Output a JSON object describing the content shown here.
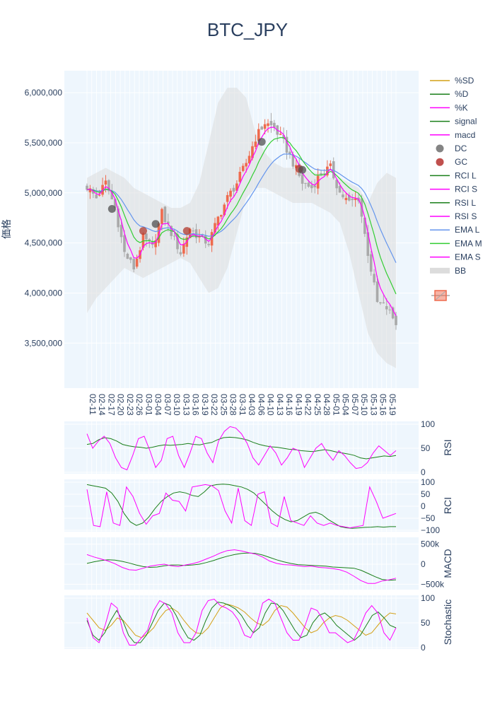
{
  "chart_data": [
    {
      "type": "candlestick",
      "title": "BTC_JPY",
      "ylabel": "価格",
      "ylim": [
        3050000,
        6220000
      ],
      "y_ticks": [
        3500000,
        4000000,
        4500000,
        5000000,
        5500000,
        6000000
      ],
      "y_tick_labels": [
        "3,500,000",
        "4,000,000",
        "4,500,000",
        "5,000,000",
        "5,500,000",
        "6,000,000"
      ],
      "x_tick_labels": [
        "02-11",
        "02-14",
        "02-17",
        "02-20",
        "02-23",
        "02-26",
        "03-01",
        "03-04",
        "03-07",
        "03-10",
        "03-13",
        "03-16",
        "03-19",
        "03-22",
        "03-25",
        "03-28",
        "03-31",
        "04-03",
        "04-06",
        "04-10",
        "04-13",
        "04-16",
        "04-19",
        "04-22",
        "04-25",
        "04-28",
        "05-01",
        "05-04",
        "05-07",
        "05-10",
        "05-13",
        "05-16",
        "05-19"
      ],
      "close_keypoints": [
        5060000,
        4950000,
        5100000,
        4850000,
        4400000,
        4250000,
        4550000,
        4450000,
        4800000,
        4600000,
        4400000,
        4650000,
        4550000,
        4500000,
        4750000,
        4950000,
        5100000,
        5300000,
        5550000,
        5700000,
        5650000,
        5500000,
        5300000,
        5100000,
        5050000,
        5200000,
        5250000,
        5000000,
        4900000,
        4950000,
        4400000,
        3900000,
        3850000,
        3700000
      ],
      "bb_upper_keypoints": [
        5150000,
        5200000,
        5250000,
        5200000,
        5150000,
        5050000,
        5000000,
        4950000,
        4900000,
        4850000,
        4850000,
        4900000,
        5100000,
        5500000,
        5900000,
        6050000,
        6050000,
        5950000,
        5600000,
        5400000,
        5300000,
        5250000,
        5250000,
        5250000,
        5200000,
        5200000,
        5150000,
        5150000,
        5100000,
        5050000,
        4900000,
        5100000,
        5200000,
        5150000
      ],
      "bb_lower_keypoints": [
        3800000,
        3950000,
        4050000,
        4150000,
        4250000,
        4200000,
        4150000,
        4200000,
        4250000,
        4300000,
        4350000,
        4300000,
        4150000,
        4000000,
        4050000,
        4250000,
        4600000,
        4950000,
        5050000,
        5050000,
        5000000,
        4950000,
        4900000,
        4900000,
        4900000,
        4850000,
        4800000,
        4700000,
        4400000,
        4000000,
        3600000,
        3400000,
        3300000,
        3250000
      ],
      "signals": [
        {
          "type": "DC",
          "date": "02-19",
          "value": 4840000
        },
        {
          "type": "GC",
          "date": "03-01",
          "value": 4620000
        },
        {
          "type": "DC",
          "date": "03-05",
          "value": 4690000
        },
        {
          "type": "GC",
          "date": "03-15",
          "value": 4620000
        },
        {
          "type": "DC",
          "date": "04-08",
          "value": 5510000
        },
        {
          "type": "GC",
          "date": "04-21",
          "value": 5240000
        },
        {
          "type": "DC",
          "date": "04-22",
          "value": 5230000
        }
      ],
      "legend": [
        {
          "label": "%SD",
          "color": "#d4a017",
          "kind": "line"
        },
        {
          "label": "%D",
          "color": "#1a7f1a",
          "kind": "line"
        },
        {
          "label": "%K",
          "color": "#ff00ff",
          "kind": "line"
        },
        {
          "label": "signal",
          "color": "#1a7f1a",
          "kind": "line"
        },
        {
          "label": "macd",
          "color": "#ff00ff",
          "kind": "line"
        },
        {
          "label": "DC",
          "color": "#6e6e6e",
          "kind": "marker"
        },
        {
          "label": "GC",
          "color": "#c0504d",
          "kind": "marker"
        },
        {
          "label": "RCI L",
          "color": "#1a7f1a",
          "kind": "line"
        },
        {
          "label": "RCI S",
          "color": "#ff00ff",
          "kind": "line"
        },
        {
          "label": "RSI L",
          "color": "#1a7f1a",
          "kind": "line"
        },
        {
          "label": "RSI S",
          "color": "#ff00ff",
          "kind": "line"
        },
        {
          "label": "EMA L",
          "color": "#6495ed",
          "kind": "line"
        },
        {
          "label": "EMA M",
          "color": "#32cd32",
          "kind": "line"
        },
        {
          "label": "EMA S",
          "color": "#ff00ff",
          "kind": "line"
        },
        {
          "label": "BB",
          "color": "#dcdcdc",
          "kind": "band"
        }
      ],
      "colors": {
        "up": "#ef6a4d",
        "down": "#a9a9a9",
        "plot_bg": "#eef6fd"
      }
    },
    {
      "type": "line",
      "ylabel": "RSI",
      "ylim": [
        0,
        100
      ],
      "y_ticks": [
        0,
        50,
        100
      ],
      "y_tick_labels": [
        "0",
        "50",
        "100"
      ],
      "series": [
        {
          "name": "RSI L",
          "color": "#1a7f1a",
          "values": [
            58,
            60,
            68,
            72,
            70,
            65,
            58,
            55,
            53,
            52,
            50,
            52,
            55,
            57,
            56,
            57,
            58,
            60,
            58,
            57,
            60,
            62,
            68,
            72,
            73,
            72,
            70,
            67,
            62,
            58,
            55,
            53,
            52,
            50,
            48,
            47,
            45,
            44,
            43,
            45,
            47,
            45,
            42,
            40,
            38,
            35,
            30,
            28,
            30,
            32,
            34,
            33,
            35
          ]
        },
        {
          "name": "RSI S",
          "color": "#ff00ff",
          "values": [
            80,
            50,
            65,
            75,
            60,
            30,
            10,
            5,
            35,
            70,
            75,
            45,
            10,
            25,
            70,
            75,
            35,
            10,
            40,
            75,
            70,
            40,
            20,
            65,
            85,
            95,
            92,
            80,
            60,
            30,
            15,
            35,
            55,
            40,
            15,
            30,
            50,
            45,
            10,
            30,
            50,
            60,
            40,
            25,
            45,
            35,
            20,
            8,
            10,
            20,
            40,
            55,
            45,
            35,
            45
          ]
        }
      ]
    },
    {
      "type": "line",
      "ylabel": "RCI",
      "ylim": [
        -100,
        100
      ],
      "y_ticks": [
        -100,
        -50,
        0,
        50,
        100
      ],
      "y_tick_labels": [
        "−100",
        "−50",
        "0",
        "50",
        "100"
      ],
      "series": [
        {
          "name": "RCI L",
          "color": "#1a7f1a",
          "values": [
            90,
            85,
            80,
            75,
            55,
            20,
            -30,
            -65,
            -80,
            -70,
            -45,
            -10,
            20,
            40,
            55,
            60,
            55,
            45,
            40,
            60,
            85,
            90,
            92,
            90,
            85,
            80,
            70,
            55,
            30,
            5,
            -20,
            -40,
            -55,
            -65,
            -60,
            -45,
            -30,
            -25,
            -35,
            -55,
            -70,
            -85,
            -90,
            -92,
            -90,
            -88,
            -87,
            -85,
            -87,
            -85,
            -85
          ]
        },
        {
          "name": "RCI S",
          "color": "#ff00ff",
          "values": [
            70,
            -80,
            -85,
            60,
            -70,
            -80,
            80,
            40,
            -30,
            -75,
            -40,
            -30,
            55,
            25,
            20,
            -20,
            80,
            85,
            90,
            85,
            65,
            -20,
            -70,
            75,
            -60,
            -80,
            50,
            60,
            -70,
            -85,
            40,
            -60,
            -70,
            -80,
            -40,
            -70,
            -80,
            -70,
            -80,
            -85,
            -90,
            -85,
            -80,
            80,
            20,
            -50,
            -40,
            -30
          ]
        }
      ]
    },
    {
      "type": "line",
      "ylabel": "MACD",
      "ylim": [
        -600000,
        600000
      ],
      "y_ticks": [
        -500000,
        0,
        500000
      ],
      "y_tick_labels": [
        "−500k",
        "0",
        "500k"
      ],
      "series": [
        {
          "name": "signal",
          "color": "#1a7f1a",
          "values": [
            20000,
            60000,
            90000,
            110000,
            100000,
            70000,
            30000,
            -20000,
            -60000,
            -80000,
            -70000,
            -40000,
            -20000,
            -20000,
            -30000,
            -20000,
            0,
            40000,
            90000,
            150000,
            200000,
            240000,
            270000,
            280000,
            270000,
            230000,
            170000,
            110000,
            60000,
            20000,
            -10000,
            -20000,
            -30000,
            -40000,
            -50000,
            -70000,
            -80000,
            -90000,
            -100000,
            -150000,
            -230000,
            -310000,
            -380000,
            -400000,
            -390000
          ]
        },
        {
          "name": "macd",
          "color": "#ff00ff",
          "values": [
            240000,
            180000,
            130000,
            80000,
            10000,
            -80000,
            -140000,
            -150000,
            -100000,
            -50000,
            -20000,
            0,
            -40000,
            -60000,
            -20000,
            10000,
            60000,
            130000,
            200000,
            280000,
            340000,
            360000,
            330000,
            290000,
            250000,
            180000,
            80000,
            20000,
            -10000,
            -20000,
            -40000,
            -60000,
            -50000,
            -80000,
            -90000,
            -110000,
            -140000,
            -200000,
            -300000,
            -410000,
            -480000,
            -480000,
            -420000,
            -390000,
            -350000
          ]
        }
      ]
    },
    {
      "type": "line",
      "ylabel": "Stochastic",
      "ylim": [
        0,
        100
      ],
      "y_ticks": [
        0,
        50,
        100
      ],
      "y_tick_labels": [
        "0",
        "50",
        "100"
      ],
      "series": [
        {
          "name": "%SD",
          "color": "#d4a017",
          "values": [
            70,
            55,
            40,
            35,
            45,
            60,
            55,
            40,
            25,
            20,
            28,
            40,
            60,
            75,
            80,
            72,
            55,
            40,
            30,
            28,
            40,
            60,
            80,
            88,
            85,
            80,
            72,
            60,
            50,
            45,
            55,
            75,
            85,
            82,
            70,
            55,
            40,
            30,
            35,
            50,
            60,
            65,
            62,
            55,
            45,
            35,
            25,
            30,
            45,
            60,
            70,
            68
          ]
        },
        {
          "name": "%D",
          "color": "#1a7f1a",
          "values": [
            55,
            25,
            15,
            30,
            55,
            75,
            55,
            25,
            10,
            10,
            25,
            50,
            75,
            90,
            85,
            65,
            40,
            20,
            15,
            25,
            55,
            80,
            92,
            90,
            85,
            78,
            65,
            45,
            30,
            40,
            70,
            90,
            88,
            75,
            55,
            35,
            20,
            25,
            50,
            65,
            70,
            60,
            45,
            35,
            25,
            15,
            25,
            45,
            65,
            72,
            60,
            45,
            40
          ]
        },
        {
          "name": "%K",
          "color": "#ff00ff",
          "values": [
            60,
            20,
            10,
            45,
            90,
            80,
            30,
            5,
            5,
            20,
            35,
            75,
            95,
            88,
            70,
            30,
            10,
            10,
            30,
            75,
            95,
            98,
            85,
            80,
            72,
            55,
            25,
            20,
            45,
            90,
            98,
            90,
            60,
            30,
            15,
            15,
            45,
            80,
            75,
            55,
            30,
            30,
            20,
            10,
            15,
            40,
            70,
            85,
            70,
            30,
            15,
            40
          ]
        }
      ]
    }
  ]
}
